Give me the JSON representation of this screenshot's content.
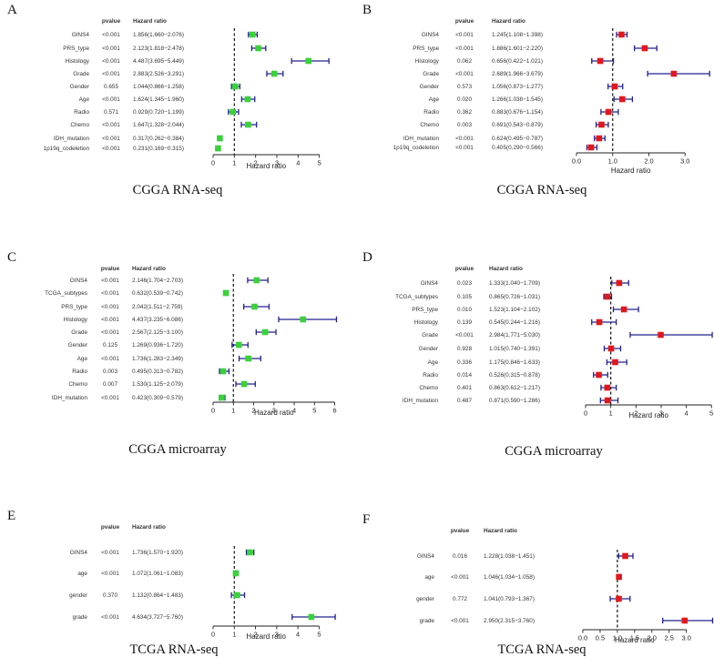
{
  "colors": {
    "ci": "#22228f",
    "green": "#3ad13a",
    "red": "#e0181e",
    "axis": "#222222",
    "ref": "#111111"
  },
  "chart_data": [
    {
      "type": "forest",
      "panel": "A",
      "title": "CGGA RNA-seq",
      "xlabel": "Hazard ratio",
      "pvalue_header": "pvalue",
      "hr_header": "Hazard ratio",
      "xlim": [
        0,
        5.4
      ],
      "ticks": [
        "0",
        "1",
        "2",
        "3",
        "4",
        "5"
      ],
      "tick_values": [
        0,
        1,
        2,
        3,
        4,
        5
      ],
      "ref": 1,
      "marker": "green",
      "rows": [
        {
          "name": "GINS4",
          "p": "<0.001",
          "hr_text": "1.856(1.660−2.076)",
          "hr": 1.856,
          "lo": 1.66,
          "hi": 2.076
        },
        {
          "name": "PRS_type",
          "p": "<0.001",
          "hr_text": "2.123(1.818−2.478)",
          "hr": 2.123,
          "lo": 1.818,
          "hi": 2.478
        },
        {
          "name": "Histology",
          "p": "<0.001",
          "hr_text": "4.487(3.695−5.449)",
          "hr": 4.487,
          "lo": 3.695,
          "hi": 5.449
        },
        {
          "name": "Grade",
          "p": "<0.001",
          "hr_text": "2.883(2.526−3.291)",
          "hr": 2.883,
          "lo": 2.526,
          "hi": 3.291
        },
        {
          "name": "Gender",
          "p": "0.655",
          "hr_text": "1.044(0.866−1.258)",
          "hr": 1.044,
          "lo": 0.866,
          "hi": 1.258
        },
        {
          "name": "Age",
          "p": "<0.001",
          "hr_text": "1.624(1.345−1.960)",
          "hr": 1.624,
          "lo": 1.345,
          "hi": 1.96
        },
        {
          "name": "Radio",
          "p": "0.571",
          "hr_text": "0.929(0.720−1.199)",
          "hr": 0.929,
          "lo": 0.72,
          "hi": 1.199
        },
        {
          "name": "Chemo",
          "p": "<0.001",
          "hr_text": "1.647(1.328−2.044)",
          "hr": 1.647,
          "lo": 1.328,
          "hi": 2.044
        },
        {
          "name": "IDH_mutation",
          "p": "<0.001",
          "hr_text": "0.317(0.262−0.384)",
          "hr": 0.317,
          "lo": 0.262,
          "hi": 0.384
        },
        {
          "name": "1p19q_codeletion",
          "p": "<0.001",
          "hr_text": "0.231(0.169−0.315)",
          "hr": 0.231,
          "lo": 0.169,
          "hi": 0.315
        }
      ]
    },
    {
      "type": "forest",
      "panel": "B",
      "title": "CGGA RNA-seq",
      "xlabel": "Hazard ratio",
      "pvalue_header": "pvalue",
      "hr_header": "Hazard ratio",
      "xlim": [
        0,
        3.8
      ],
      "ticks": [
        "0.0",
        "1.0",
        "2.0",
        "3.0"
      ],
      "tick_values": [
        0,
        1,
        2,
        3
      ],
      "ref": 1,
      "marker": "red",
      "rows": [
        {
          "name": "GINS4",
          "p": "<0.001",
          "hr_text": "1.245(1.108−1.398)",
          "hr": 1.245,
          "lo": 1.108,
          "hi": 1.398
        },
        {
          "name": "PRS_type",
          "p": "<0.001",
          "hr_text": "1.886(1.601−2.220)",
          "hr": 1.886,
          "lo": 1.601,
          "hi": 2.22
        },
        {
          "name": "Histology",
          "p": "0.062",
          "hr_text": "0.656(0.422−1.021)",
          "hr": 0.656,
          "lo": 0.422,
          "hi": 1.021
        },
        {
          "name": "Grade",
          "p": "<0.001",
          "hr_text": "2.689(1.966−3.679)",
          "hr": 2.689,
          "lo": 1.966,
          "hi": 3.679
        },
        {
          "name": "Gender",
          "p": "0.573",
          "hr_text": "1.056(0.873−1.277)",
          "hr": 1.056,
          "lo": 0.873,
          "hi": 1.277
        },
        {
          "name": "Age",
          "p": "0.020",
          "hr_text": "1.266(1.038−1.545)",
          "hr": 1.266,
          "lo": 1.038,
          "hi": 1.545
        },
        {
          "name": "Radio",
          "p": "0.362",
          "hr_text": "0.883(0.676−1.154)",
          "hr": 0.883,
          "lo": 0.676,
          "hi": 1.154
        },
        {
          "name": "Chemo",
          "p": "0.003",
          "hr_text": "0.691(0.543−0.879)",
          "hr": 0.691,
          "lo": 0.543,
          "hi": 0.879
        },
        {
          "name": "IDH_mutation",
          "p": "<0.001",
          "hr_text": "0.624(0.495−0.787)",
          "hr": 0.624,
          "lo": 0.495,
          "hi": 0.787
        },
        {
          "name": "1p19q_codeletion",
          "p": "<0.001",
          "hr_text": "0.405(0.290−0.566)",
          "hr": 0.405,
          "lo": 0.29,
          "hi": 0.566
        }
      ]
    },
    {
      "type": "forest",
      "panel": "C",
      "title": "CGGA microarray",
      "xlabel": "Hazard ratio",
      "pvalue_header": "pvalue",
      "hr_header": "Hazard ratio",
      "xlim": [
        0,
        6.2
      ],
      "ticks": [
        "0",
        "1",
        "2",
        "3",
        "4",
        "5",
        "6"
      ],
      "tick_values": [
        0,
        1,
        2,
        3,
        4,
        5,
        6
      ],
      "ref": 1,
      "marker": "green",
      "rows": [
        {
          "name": "GINS4",
          "p": "<0.001",
          "hr_text": "2.146(1.704−2.703)",
          "hr": 2.146,
          "lo": 1.704,
          "hi": 2.703
        },
        {
          "name": "TCGA_subtypes",
          "p": "<0.001",
          "hr_text": "0.632(0.539−0.742)",
          "hr": 0.632,
          "lo": 0.539,
          "hi": 0.742
        },
        {
          "name": "PRS_type",
          "p": "<0.001",
          "hr_text": "2.042(1.511−2.759)",
          "hr": 2.042,
          "lo": 1.511,
          "hi": 2.759
        },
        {
          "name": "Histology",
          "p": "<0.001",
          "hr_text": "4.437(3.235−6.086)",
          "hr": 4.437,
          "lo": 3.235,
          "hi": 6.086
        },
        {
          "name": "Grade",
          "p": "<0.001",
          "hr_text": "2.567(2.125−3.100)",
          "hr": 2.567,
          "lo": 2.125,
          "hi": 3.1
        },
        {
          "name": "Gender",
          "p": "0.125",
          "hr_text": "1.269(0.936−1.720)",
          "hr": 1.269,
          "lo": 0.936,
          "hi": 1.72
        },
        {
          "name": "Age",
          "p": "<0.001",
          "hr_text": "1.736(1.283−2.349)",
          "hr": 1.736,
          "lo": 1.283,
          "hi": 2.349
        },
        {
          "name": "Radio",
          "p": "0.003",
          "hr_text": "0.495(0.313−0.782)",
          "hr": 0.495,
          "lo": 0.313,
          "hi": 0.782
        },
        {
          "name": "Chemo",
          "p": "0.007",
          "hr_text": "1.530(1.125−2.079)",
          "hr": 1.53,
          "lo": 1.125,
          "hi": 2.079
        },
        {
          "name": "IDH_mutation",
          "p": "<0.001",
          "hr_text": "0.423(0.309−0.579)",
          "hr": 0.423,
          "lo": 0.309,
          "hi": 0.579
        }
      ]
    },
    {
      "type": "forest",
      "panel": "D",
      "title": "CGGA microarray",
      "xlabel": "Hazard ratio",
      "pvalue_header": "pvalue",
      "hr_header": "Hazard ratio",
      "xlim": [
        0,
        5.1
      ],
      "ticks": [
        "0",
        "1",
        "2",
        "3",
        "4",
        "5"
      ],
      "tick_values": [
        0,
        1,
        2,
        3,
        4,
        5
      ],
      "ref": 1,
      "marker": "red",
      "rows": [
        {
          "name": "GINS4",
          "p": "0.023",
          "hr_text": "1.333(1.040−1.709)",
          "hr": 1.333,
          "lo": 1.04,
          "hi": 1.709
        },
        {
          "name": "TCGA_subtypes",
          "p": "0.105",
          "hr_text": "0.865(0.726−1.031)",
          "hr": 0.865,
          "lo": 0.726,
          "hi": 1.031
        },
        {
          "name": "PRS_type",
          "p": "0.010",
          "hr_text": "1.523(1.104−2.102)",
          "hr": 1.523,
          "lo": 1.104,
          "hi": 2.102
        },
        {
          "name": "Histology",
          "p": "0.139",
          "hr_text": "0.545(0.244−1.216)",
          "hr": 0.545,
          "lo": 0.244,
          "hi": 1.216
        },
        {
          "name": "Grade",
          "p": "<0.001",
          "hr_text": "2.984(1.771−5.030)",
          "hr": 2.984,
          "lo": 1.771,
          "hi": 5.03
        },
        {
          "name": "Gender",
          "p": "0.928",
          "hr_text": "1.015(0.740−1.391)",
          "hr": 1.015,
          "lo": 0.74,
          "hi": 1.391
        },
        {
          "name": "Age",
          "p": "0.336",
          "hr_text": "1.175(0.846−1.633)",
          "hr": 1.175,
          "lo": 0.846,
          "hi": 1.633
        },
        {
          "name": "Radio",
          "p": "0.014",
          "hr_text": "0.526(0.315−0.878)",
          "hr": 0.526,
          "lo": 0.315,
          "hi": 0.878
        },
        {
          "name": "Chemo",
          "p": "0.401",
          "hr_text": "0.863(0.612−1.217)",
          "hr": 0.863,
          "lo": 0.612,
          "hi": 1.217
        },
        {
          "name": "IDH_mutation",
          "p": "0.487",
          "hr_text": "0.871(0.590−1.286)",
          "hr": 0.871,
          "lo": 0.59,
          "hi": 1.286
        }
      ]
    },
    {
      "type": "forest",
      "panel": "E",
      "title": "TCGA RNA-seq",
      "xlabel": "Hazard ratio",
      "pvalue_header": "pvalue",
      "hr_header": "Hazard ratio",
      "xlim": [
        0,
        5.8
      ],
      "ticks": [
        "0",
        "1",
        "2",
        "3",
        "4",
        "5"
      ],
      "tick_values": [
        0,
        1,
        2,
        3,
        4,
        5
      ],
      "ref": 1,
      "marker": "green",
      "rows": [
        {
          "name": "GINS4",
          "p": "<0.001",
          "hr_text": "1.736(1.570−1.920)",
          "hr": 1.736,
          "lo": 1.57,
          "hi": 1.92
        },
        {
          "name": "age",
          "p": "<0.001",
          "hr_text": "1.072(1.061−1.083)",
          "hr": 1.072,
          "lo": 1.061,
          "hi": 1.083
        },
        {
          "name": "gender",
          "p": "0.370",
          "hr_text": "1.132(0.864−1.483)",
          "hr": 1.132,
          "lo": 0.864,
          "hi": 1.483
        },
        {
          "name": "grade",
          "p": "<0.001",
          "hr_text": "4.634(3.727−5.760)",
          "hr": 4.634,
          "lo": 3.727,
          "hi": 5.76
        }
      ]
    },
    {
      "type": "forest",
      "panel": "F",
      "title": "TCGA RNA-seq",
      "xlabel": "Hazard ratio",
      "pvalue_header": "pvalue",
      "hr_header": "Hazard ratio",
      "xlim": [
        0,
        3.8
      ],
      "ticks": [
        "0.0",
        "0.5",
        "1.0",
        "1.5",
        "2.0",
        "2.5",
        "3.0"
      ],
      "tick_values": [
        0,
        0.5,
        1,
        1.5,
        2,
        2.5,
        3
      ],
      "ref": 1,
      "marker": "red",
      "rows": [
        {
          "name": "GINS4",
          "p": "0.016",
          "hr_text": "1.228(1.038−1.451)",
          "hr": 1.228,
          "lo": 1.038,
          "hi": 1.451
        },
        {
          "name": "age",
          "p": "<0.001",
          "hr_text": "1.046(1.034−1.058)",
          "hr": 1.046,
          "lo": 1.034,
          "hi": 1.058
        },
        {
          "name": "gender",
          "p": "0.772",
          "hr_text": "1.041(0.793−1.367)",
          "hr": 1.041,
          "lo": 0.793,
          "hi": 1.367
        },
        {
          "name": "grade",
          "p": "<0.001",
          "hr_text": "2.950(2.315−3.760)",
          "hr": 2.95,
          "lo": 2.315,
          "hi": 3.76
        }
      ]
    }
  ]
}
